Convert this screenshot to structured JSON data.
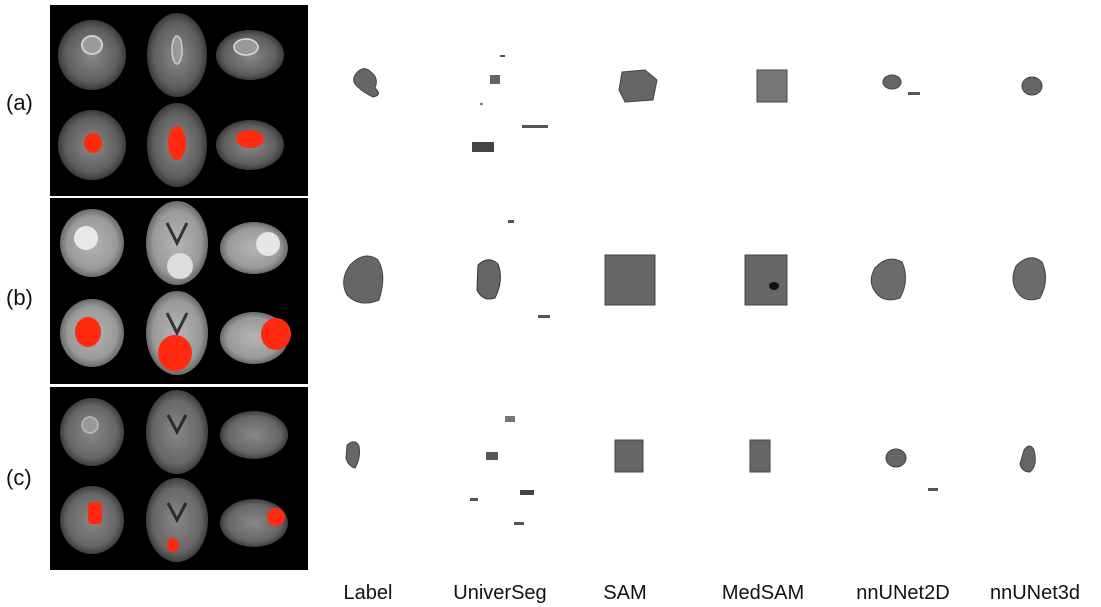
{
  "figure": {
    "rows": [
      {
        "label": "(a)"
      },
      {
        "label": "(b)"
      },
      {
        "label": "(c)"
      }
    ],
    "columns": [
      {
        "label": "Label"
      },
      {
        "label": "UniverSeg"
      },
      {
        "label": "SAM"
      },
      {
        "label": "MedSAM"
      },
      {
        "label": "nnUNet2D"
      },
      {
        "label": "nnUNet3d"
      }
    ],
    "colors": {
      "background": "#000000",
      "segmentation_overlay": "#ff2a10",
      "render_surface": "#6b6b6b",
      "render_edge": "#3a3a3a"
    }
  }
}
